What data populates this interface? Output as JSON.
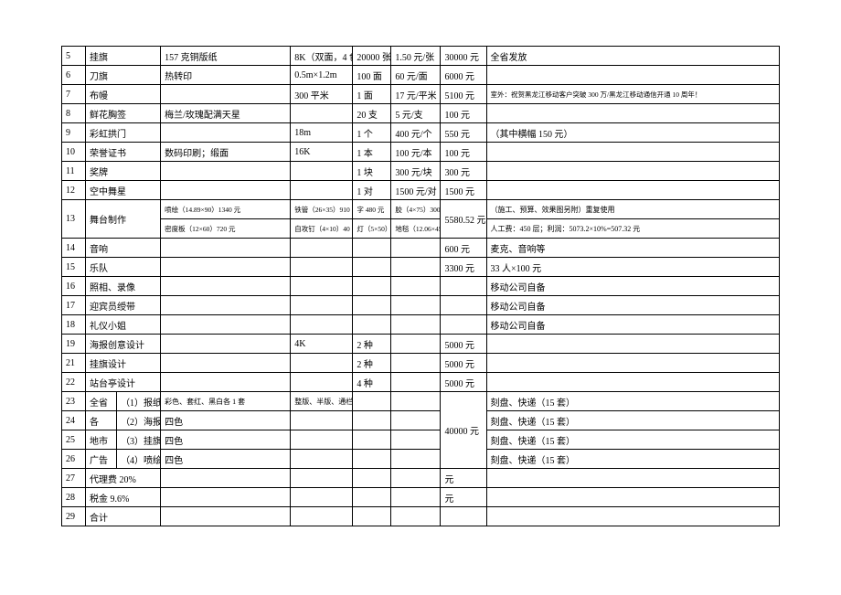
{
  "rows": [
    {
      "no": "5",
      "name": "挂旗",
      "material": "157 克铜版纸",
      "spec": "8K（双面，4 色）",
      "qty": "20000 张",
      "unit": "1.50 元/张",
      "total": "30000 元",
      "note": "全省发放"
    },
    {
      "no": "6",
      "name": "刀旗",
      "material": "热转印",
      "spec": "0.5m×1.2m",
      "qty": "100 面",
      "unit": "60 元/面",
      "total": "6000 元",
      "note": ""
    },
    {
      "no": "7",
      "name": "布幔",
      "material": "",
      "spec": "300 平米",
      "qty": "1 面",
      "unit": "17 元/平米",
      "total": "5100 元",
      "note": "室外：祝贺黑龙江移动客户突破 300 万/黑龙江移动通信开通 10 周年！",
      "note_tiny": true
    },
    {
      "no": "8",
      "name": "鲜花胸签",
      "material": "梅兰/玫瑰配满天星",
      "spec": "",
      "qty": "20 支",
      "unit": "5 元/支",
      "total": "100 元",
      "note": ""
    },
    {
      "no": "9",
      "name": "彩虹拱门",
      "material": "",
      "spec": "18m",
      "qty": "1 个",
      "unit": "400 元/个",
      "total": "550 元",
      "note": "（其中横幅 150 元）"
    },
    {
      "no": "10",
      "name": "荣誉证书",
      "material": "数码印刷；缎面",
      "spec": "16K",
      "qty": "1 本",
      "unit": "100 元/本",
      "total": "100 元",
      "note": ""
    },
    {
      "no": "11",
      "name": "奖牌",
      "material": "",
      "spec": "",
      "qty": "1 块",
      "unit": "300 元/块",
      "total": "300 元",
      "note": ""
    },
    {
      "no": "12",
      "name": "空中舞星",
      "material": "",
      "spec": "",
      "qty": "1 对",
      "unit": "1500 元/对",
      "total": "1500 元",
      "note": ""
    }
  ],
  "row13": {
    "no": "13",
    "name": "舞台制作",
    "mat1": "喷绘（14.89×90）1340 元",
    "mat2": "密度板（12×60）720 元",
    "spec1": "铁管（26×35）910 元",
    "spec2": "自攻钉（4×10）40 元",
    "qty1": "字 480 元",
    "qty2": "灯（5×50）",
    "unit1": "胶（4×75）300 元",
    "unit2": "地毯（12.06×45）",
    "total": "5580.52 元",
    "note1": "（施工、预算、效果图另附）重复使用",
    "note2": "人工费：450 层；利润：5073.2×10%=507.32 元"
  },
  "rows2": [
    {
      "no": "14",
      "name": "音响",
      "total": "600 元",
      "note": "麦克、音响等"
    },
    {
      "no": "15",
      "name": "乐队",
      "total": "3300 元",
      "note": "33 人×100 元"
    },
    {
      "no": "16",
      "name": "照相、录像",
      "total": "",
      "note": "移动公司自备"
    },
    {
      "no": "17",
      "name": "迎宾员绶带",
      "total": "",
      "note": "移动公司自备"
    },
    {
      "no": "18",
      "name": "礼仪小姐",
      "total": "",
      "note": "移动公司自备"
    },
    {
      "no": "19",
      "name": "海报创意设计",
      "spec": "4K",
      "qty": "2 种",
      "total": "5000 元",
      "note": ""
    },
    {
      "no": "21",
      "name": "挂旗设计",
      "spec": "",
      "qty": "2 种",
      "total": "5000 元",
      "note": ""
    },
    {
      "no": "22",
      "name": "站台亭设计",
      "spec": "",
      "qty": "4 种",
      "total": "5000 元",
      "note": ""
    }
  ],
  "group": {
    "col_a": [
      "全省",
      "各",
      "地市",
      "广告"
    ],
    "col_b": [
      "（1）报纸",
      "（2）海报",
      "（3）挂旗",
      "（4）喷绘"
    ],
    "mat": [
      "彩色、套红、黑白各 1 套",
      "四色",
      "四色",
      "四色"
    ],
    "spec": [
      "整版、半版、通栏",
      "",
      "",
      ""
    ],
    "total": "40000 元",
    "note": [
      "刻盘、快递（15 套）",
      "刻盘、快递（15 套）",
      "刻盘、快递（15 套）",
      "刻盘、快递（15 套）"
    ],
    "nos": [
      "23",
      "24",
      "25",
      "26"
    ]
  },
  "tail": [
    {
      "no": "27",
      "name": "代理费 20%",
      "total": "元"
    },
    {
      "no": "28",
      "name": "税金 9.6%",
      "total": "元"
    },
    {
      "no": "29",
      "name": "合计",
      "total": ""
    }
  ]
}
